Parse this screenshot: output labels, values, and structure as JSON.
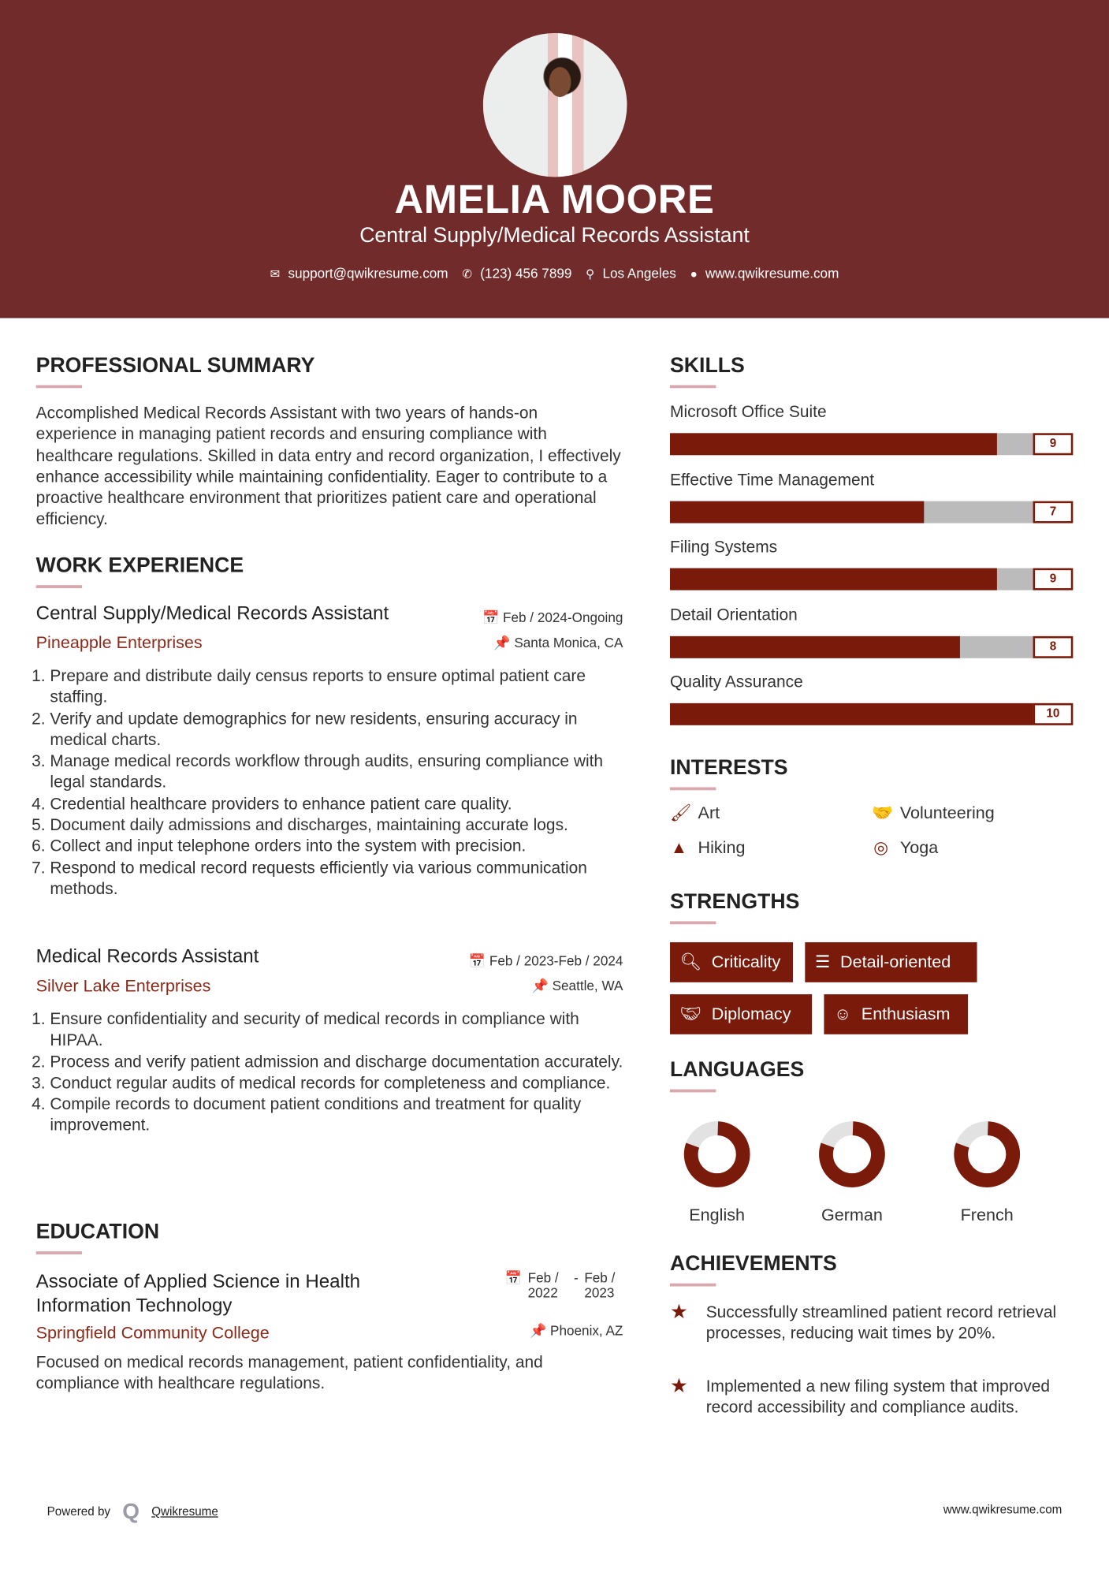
{
  "header": {
    "name": "AMELIA MOORE",
    "title": "Central Supply/Medical Records Assistant",
    "contacts": [
      {
        "icon": "envelope-icon",
        "text": "support@qwikresume.com"
      },
      {
        "icon": "phone-icon",
        "text": "(123) 456 7899"
      },
      {
        "icon": "map-marker-icon",
        "text": "Los Angeles"
      },
      {
        "icon": "globe-icon",
        "text": "www.qwikresume.com"
      }
    ]
  },
  "summary": {
    "heading": "PROFESSIONAL SUMMARY",
    "text": "Accomplished Medical Records Assistant with two years of hands-on experience in managing patient records and ensuring compliance with healthcare regulations. Skilled in data entry and record organization, I effectively enhance accessibility while maintaining confidentiality. Eager to contribute to a proactive healthcare environment that prioritizes patient care and operational efficiency."
  },
  "experience": {
    "heading": "WORK EXPERIENCE",
    "jobs": [
      {
        "title": "Central Supply/Medical Records Assistant",
        "company": "Pineapple Enterprises",
        "date": "Feb / 2024-Ongoing",
        "location": "Santa Monica, CA",
        "bullets": [
          "Prepare and distribute daily census reports to ensure optimal patient care staffing.",
          "Verify and update demographics for new residents, ensuring accuracy in medical charts.",
          "Manage medical records workflow through audits, ensuring compliance with legal standards.",
          "Credential healthcare providers to enhance patient care quality.",
          "Document daily admissions and discharges, maintaining accurate logs.",
          "Collect and input telephone orders into the system with precision.",
          "Respond to medical record requests efficiently via various communication methods."
        ]
      },
      {
        "title": "Medical Records Assistant",
        "company": "Silver Lake Enterprises",
        "date": "Feb / 2023-Feb / 2024",
        "location": "Seattle, WA",
        "bullets": [
          "Ensure confidentiality and security of medical records in compliance with HIPAA.",
          "Process and verify patient admission and discharge documentation accurately.",
          "Conduct regular audits of medical records for completeness and compliance.",
          "Compile records to document patient conditions and treatment for quality improvement."
        ]
      }
    ]
  },
  "education": {
    "heading": "EDUCATION",
    "degree": "Associate of Applied Science in Health Information Technology",
    "school": "Springfield Community College",
    "date_start": "Feb / 2022",
    "date_end": "Feb / 2023",
    "location": "Phoenix, AZ",
    "text": "Focused on medical records management, patient confidentiality, and compliance with healthcare regulations."
  },
  "skills": {
    "heading": "SKILLS",
    "max": 10,
    "items": [
      {
        "name": "Microsoft Office Suite",
        "level": 9
      },
      {
        "name": "Effective Time Management",
        "level": 7
      },
      {
        "name": "Filing Systems",
        "level": 9
      },
      {
        "name": "Detail Orientation",
        "level": 8
      },
      {
        "name": "Quality Assurance",
        "level": 10
      }
    ]
  },
  "interests": {
    "heading": "INTERESTS",
    "items": [
      {
        "icon": "paintbrush-icon",
        "label": "Art"
      },
      {
        "icon": "handshake-icon",
        "label": "Volunteering"
      },
      {
        "icon": "tree-icon",
        "label": "Hiking"
      },
      {
        "icon": "lifebuoy-icon",
        "label": "Yoga"
      }
    ]
  },
  "strengths": {
    "heading": "STRENGTHS",
    "items": [
      {
        "icon": "search-icon",
        "label": "Criticality"
      },
      {
        "icon": "list-icon",
        "label": "Detail-oriented"
      },
      {
        "icon": "handshake-icon",
        "label": "Diplomacy"
      },
      {
        "icon": "smile-icon",
        "label": "Enthusiasm"
      }
    ]
  },
  "languages": {
    "heading": "LANGUAGES",
    "items": [
      {
        "name": "English",
        "level": 0.8
      },
      {
        "name": "German",
        "level": 0.8
      },
      {
        "name": "French",
        "level": 0.8
      }
    ]
  },
  "achievements": {
    "heading": "ACHIEVEMENTS",
    "items": [
      "Successfully streamlined patient record retrieval processes, reducing wait times by 20%.",
      "Implemented a new filing system that improved record accessibility and compliance audits."
    ]
  },
  "footer": {
    "powered_by": "Powered by",
    "brand": "Qwikresume",
    "website": "www.qwikresume.com"
  },
  "colors": {
    "header_bg": "#722b2b",
    "accent": "#7a1a0a",
    "underline": "#d9a8ae",
    "bar_empty": "#bbbbbb"
  }
}
